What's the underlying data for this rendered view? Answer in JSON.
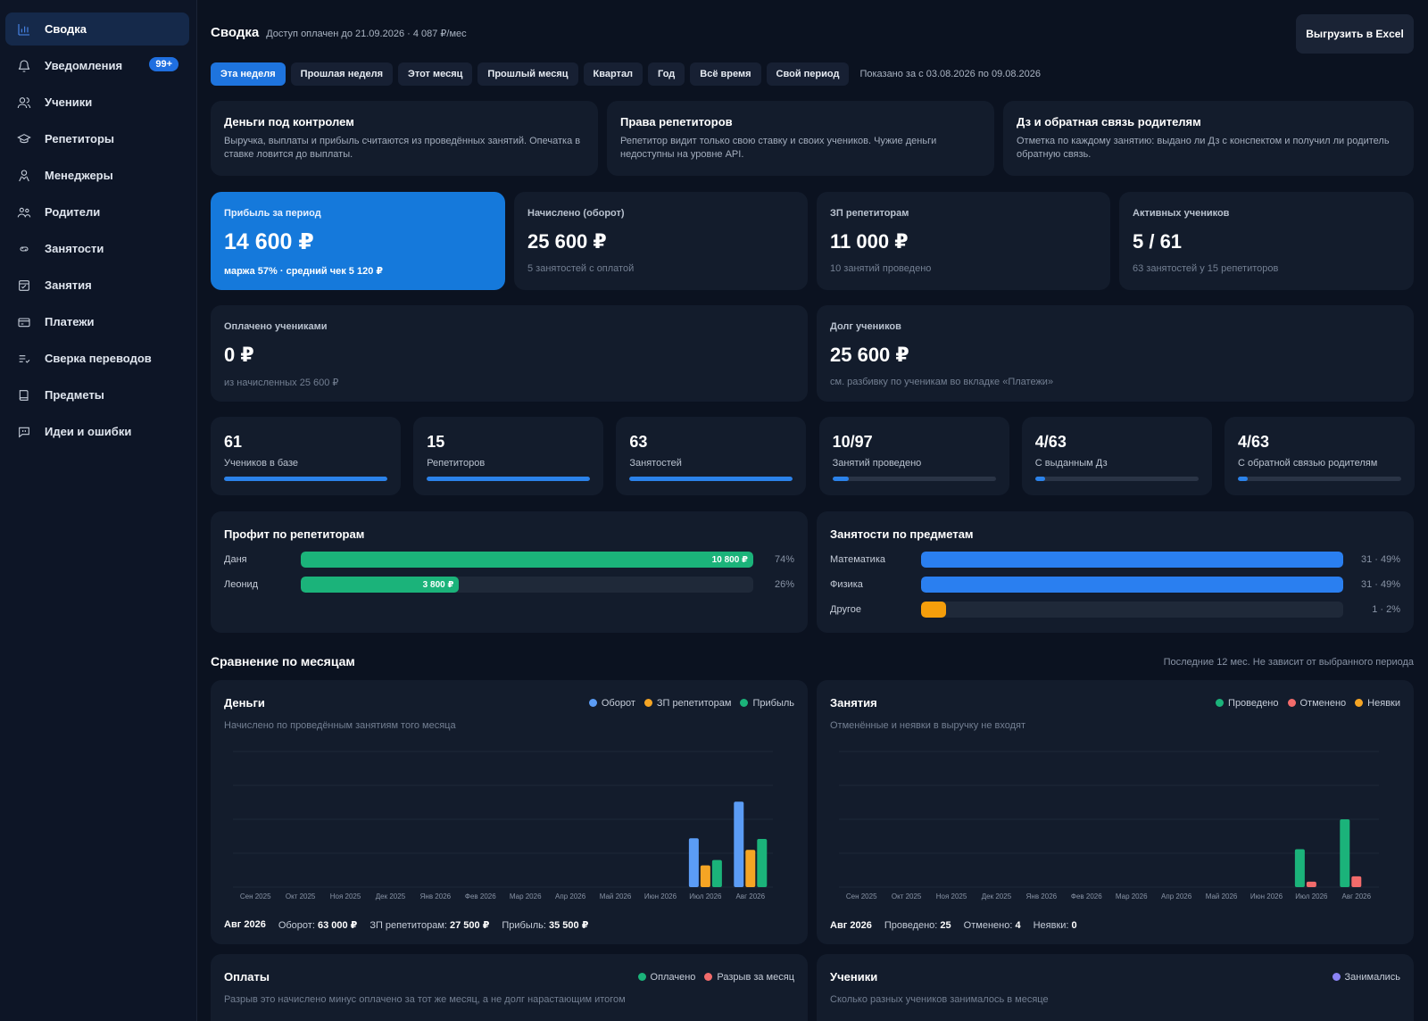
{
  "sidebar": {
    "items": [
      {
        "label": "Сводка",
        "icon": "bar-chart-icon"
      },
      {
        "label": "Уведомления",
        "icon": "bell-icon",
        "badge": "99+"
      },
      {
        "label": "Ученики",
        "icon": "users-icon"
      },
      {
        "label": "Репетиторы",
        "icon": "graduation-cap-icon"
      },
      {
        "label": "Менеджеры",
        "icon": "manager-icon"
      },
      {
        "label": "Родители",
        "icon": "parents-icon"
      },
      {
        "label": "Занятости",
        "icon": "link-icon"
      },
      {
        "label": "Занятия",
        "icon": "calendar-check-icon"
      },
      {
        "label": "Платежи",
        "icon": "credit-card-icon"
      },
      {
        "label": "Сверка переводов",
        "icon": "list-check-icon"
      },
      {
        "label": "Предметы",
        "icon": "book-icon"
      },
      {
        "label": "Идеи и ошибки",
        "icon": "message-icon"
      }
    ]
  },
  "header": {
    "title": "Сводка",
    "access": "Доступ оплачен до 21.09.2026 · 4 087 ₽/мес",
    "export_label": "Выгрузить в Excel"
  },
  "tabs": [
    "Эта неделя",
    "Прошлая неделя",
    "Этот месяц",
    "Прошлый месяц",
    "Квартал",
    "Год",
    "Всё время",
    "Свой период"
  ],
  "active_tab": 0,
  "period_note": "Показано за с 03.08.2026 по 09.08.2026",
  "info_cards": [
    {
      "title": "Деньги под контролем",
      "text": "Выручка, выплаты и прибыль считаются из проведённых занятий. Опечатка в ставке ловится до выплаты."
    },
    {
      "title": "Права репетиторов",
      "text": "Репетитор видит только свою ставку и своих учеников. Чужие деньги недоступны на уровне API."
    },
    {
      "title": "Дз и обратная связь родителям",
      "text": "Отметка по каждому занятию: выдано ли Дз с конспектом и получил ли родитель обратную связь."
    }
  ],
  "kpis": [
    {
      "label": "Прибыль за период",
      "value": "14 600 ₽",
      "sub": "маржа 57% · средний чек 5 120 ₽"
    },
    {
      "label": "Начислено (оборот)",
      "value": "25 600 ₽",
      "sub": "5 занятостей с оплатой"
    },
    {
      "label": "ЗП репетиторам",
      "value": "11 000 ₽",
      "sub": "10 занятий проведено"
    },
    {
      "label": "Активных учеников",
      "value": "5 / 61",
      "sub": "63 занятостей у 15 репетиторов"
    }
  ],
  "kpis_wide": [
    {
      "label": "Оплачено учениками",
      "value": "0 ₽",
      "sub": "из начисленных 25 600 ₽"
    },
    {
      "label": "Долг учеников",
      "value": "25 600 ₽",
      "sub": "см. разбивку по ученикам во вкладке «Платежи»"
    }
  ],
  "stats": [
    {
      "value": "61",
      "label": "Учеников в базе",
      "progress": 1.0
    },
    {
      "value": "15",
      "label": "Репетиторов",
      "progress": 1.0
    },
    {
      "value": "63",
      "label": "Занятостей",
      "progress": 1.0
    },
    {
      "value": "10/97",
      "label": "Занятий проведено",
      "progress": 0.1
    },
    {
      "value": "4/63",
      "label": "С выданным Дз",
      "progress": 0.06
    },
    {
      "value": "4/63",
      "label": "С обратной связью родителям",
      "progress": 0.06
    }
  ],
  "profit_by_tutor": {
    "title": "Профит по репетиторам",
    "rows": [
      {
        "name": "Даня",
        "amount": "10 800 ₽",
        "pct": "74%",
        "fraction": 1.0
      },
      {
        "name": "Леонид",
        "amount": "3 800 ₽",
        "pct": "26%",
        "fraction": 0.35
      }
    ],
    "color": "#1bb37a"
  },
  "by_subject": {
    "title": "Занятости по предметам",
    "rows": [
      {
        "name": "Математика",
        "pct": "31 · 49%",
        "fraction": 1.0,
        "color": "#2a7ff0"
      },
      {
        "name": "Физика",
        "pct": "31 · 49%",
        "fraction": 1.0,
        "color": "#2a7ff0"
      },
      {
        "name": "Другое",
        "pct": "1 · 2%",
        "fraction": 0.06,
        "color": "#f59e0b"
      }
    ]
  },
  "compare": {
    "title": "Сравнение по месяцам",
    "note": "Последние 12 мес. Не зависит от выбранного периода"
  },
  "chart_data": [
    {
      "type": "bar",
      "title": "Деньги",
      "subtitle": "Начислено по проведённым занятиям того месяца",
      "categories": [
        "Сен 2025",
        "Окт 2025",
        "Ноя 2025",
        "Дек 2025",
        "Янв 2026",
        "Фев 2026",
        "Мар 2026",
        "Апр 2026",
        "Май 2026",
        "Июн 2026",
        "Июл 2026",
        "Авг 2026"
      ],
      "series": [
        {
          "name": "Оборот",
          "color": "#5b9cf5",
          "values": [
            0,
            0,
            0,
            0,
            0,
            0,
            0,
            0,
            0,
            0,
            36000,
            63000
          ]
        },
        {
          "name": "ЗП репетиторам",
          "color": "#f5a524",
          "values": [
            0,
            0,
            0,
            0,
            0,
            0,
            0,
            0,
            0,
            0,
            16000,
            27500
          ]
        },
        {
          "name": "Прибыль",
          "color": "#1bb37a",
          "values": [
            0,
            0,
            0,
            0,
            0,
            0,
            0,
            0,
            0,
            0,
            20000,
            35500
          ]
        }
      ],
      "ylim": [
        0,
        100000
      ],
      "grid": true,
      "legend": "top-right",
      "footer": {
        "month": "Авг 2026",
        "items": [
          {
            "label": "Оборот:",
            "value": "63 000 ₽"
          },
          {
            "label": "ЗП репетиторам:",
            "value": "27 500 ₽"
          },
          {
            "label": "Прибыль:",
            "value": "35 500 ₽"
          }
        ]
      }
    },
    {
      "type": "bar",
      "title": "Занятия",
      "subtitle": "Отменённые и неявки в выручку не входят",
      "categories": [
        "Сен 2025",
        "Окт 2025",
        "Ноя 2025",
        "Дек 2025",
        "Янв 2026",
        "Фев 2026",
        "Мар 2026",
        "Апр 2026",
        "Май 2026",
        "Июн 2026",
        "Июл 2026",
        "Авг 2026"
      ],
      "series": [
        {
          "name": "Проведено",
          "color": "#1bb37a",
          "values": [
            0,
            0,
            0,
            0,
            0,
            0,
            0,
            0,
            0,
            0,
            14,
            25
          ]
        },
        {
          "name": "Отменено",
          "color": "#f26b6b",
          "values": [
            0,
            0,
            0,
            0,
            0,
            0,
            0,
            0,
            0,
            0,
            2,
            4
          ]
        },
        {
          "name": "Неявки",
          "color": "#f5a524",
          "values": [
            0,
            0,
            0,
            0,
            0,
            0,
            0,
            0,
            0,
            0,
            0,
            0
          ]
        }
      ],
      "ylim": [
        0,
        50
      ],
      "grid": true,
      "legend": "top-right",
      "footer": {
        "month": "Авг 2026",
        "items": [
          {
            "label": "Проведено:",
            "value": "25"
          },
          {
            "label": "Отменено:",
            "value": "4"
          },
          {
            "label": "Неявки:",
            "value": "0"
          }
        ]
      }
    }
  ],
  "lower_cards": [
    {
      "title": "Оплаты",
      "subtitle": "Разрыв это начислено минус оплачено за тот же месяц, а не долг нарастающим итогом",
      "legend": [
        {
          "name": "Оплачено",
          "color": "#1bb37a"
        },
        {
          "name": "Разрыв за месяц",
          "color": "#f26b6b"
        }
      ]
    },
    {
      "title": "Ученики",
      "subtitle": "Сколько разных учеников занималось в месяце",
      "legend": [
        {
          "name": "Занимались",
          "color": "#8b83f5"
        }
      ]
    }
  ]
}
